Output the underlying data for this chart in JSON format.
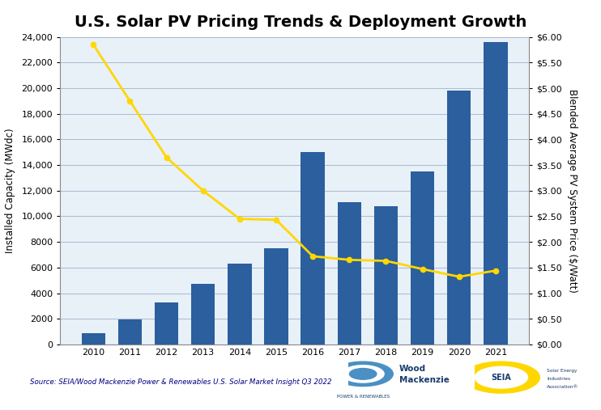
{
  "title": "U.S. Solar PV Pricing Trends & Deployment Growth",
  "years": [
    2010,
    2011,
    2012,
    2013,
    2014,
    2015,
    2016,
    2017,
    2018,
    2019,
    2020,
    2021
  ],
  "installed_capacity": [
    850,
    1950,
    3300,
    4750,
    6300,
    7500,
    15000,
    11100,
    10800,
    13500,
    19800,
    23600
  ],
  "pv_price": [
    5.85,
    4.75,
    3.65,
    3.0,
    2.45,
    2.43,
    1.72,
    1.65,
    1.63,
    1.47,
    1.32,
    1.44
  ],
  "bar_color": "#2B5F9E",
  "line_color": "#FFD700",
  "background_color": "#E8F0F8",
  "grid_color": "#AABBD0",
  "ylabel_left": "Installed Capacity (MWdc)",
  "ylabel_right": "Blended Average PV System Price ($/Watt)",
  "ylim_left": [
    0,
    24000
  ],
  "ylim_right": [
    0.0,
    6.0
  ],
  "yticks_left": [
    0,
    2000,
    4000,
    6000,
    8000,
    10000,
    12000,
    14000,
    16000,
    18000,
    20000,
    22000,
    24000
  ],
  "yticks_right": [
    0.0,
    0.5,
    1.0,
    1.5,
    2.0,
    2.5,
    3.0,
    3.5,
    4.0,
    4.5,
    5.0,
    5.5,
    6.0
  ],
  "ytick_labels_right": [
    "$0.00",
    "$0.50",
    "$1.00",
    "$1.50",
    "$2.00",
    "$2.50",
    "$3.00",
    "$3.50",
    "$4.00",
    "$4.50",
    "$5.00",
    "$5.50",
    "$6.00"
  ],
  "ytick_labels_left": [
    "0",
    "2000",
    "4000",
    "6000",
    "8000",
    "10,000",
    "12,000",
    "14,000",
    "16,000",
    "18,000",
    "20,000",
    "22,000",
    "24,000"
  ],
  "source_text": "Source: SEIA/Wood Mackenzie Power & Renewables U.S. Solar Market Insight Q3 2022",
  "title_fontsize": 14,
  "label_fontsize": 8.5,
  "tick_fontsize": 8
}
